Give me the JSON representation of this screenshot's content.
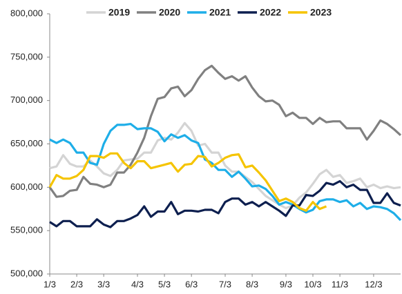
{
  "chart_data": {
    "type": "line",
    "categories": [
      "1/3",
      null,
      null,
      null,
      "2/3",
      null,
      null,
      null,
      "3/3",
      null,
      null,
      null,
      null,
      "4/3",
      null,
      null,
      null,
      "5/3",
      null,
      null,
      null,
      "6/3",
      null,
      null,
      null,
      null,
      "7/3",
      null,
      null,
      null,
      "8/3",
      null,
      null,
      null,
      null,
      "9/3",
      null,
      null,
      null,
      "10/3",
      null,
      null,
      null,
      "11/3",
      null,
      null,
      null,
      null,
      "12/3",
      null,
      null,
      null,
      null
    ],
    "series": [
      {
        "name": "2019",
        "color": "#d4d4d4",
        "values": [
          622,
          624,
          637,
          627,
          624,
          624,
          631,
          624,
          616,
          613,
          620,
          631,
          632,
          633,
          640,
          640,
          654,
          657,
          655,
          663,
          674,
          665,
          648,
          650,
          640,
          640,
          625,
          618,
          618,
          612,
          606,
          598,
          590,
          585,
          580,
          576,
          579,
          588,
          594,
          604,
          615,
          620,
          612,
          614,
          605,
          607,
          610,
          600,
          603,
          599,
          601,
          599,
          600
        ]
      },
      {
        "name": "2020",
        "color": "#808080",
        "values": [
          600,
          589,
          590,
          596,
          597,
          612,
          604,
          603,
          600,
          603,
          617,
          617,
          626,
          640,
          657,
          682,
          702,
          704,
          714,
          716,
          705,
          712,
          725,
          735,
          740,
          732,
          725,
          728,
          723,
          728,
          715,
          705,
          699,
          700,
          695,
          682,
          686,
          680,
          680,
          673,
          680,
          675,
          676,
          676,
          668,
          668,
          668,
          655,
          665,
          677,
          673,
          667,
          660
        ]
      },
      {
        "name": "2021",
        "color": "#1eaee8",
        "values": [
          655,
          651,
          655,
          651,
          640,
          640,
          628,
          626,
          650,
          665,
          672,
          672,
          673,
          667,
          668,
          668,
          664,
          653,
          661,
          657,
          660,
          654,
          651,
          632,
          628,
          620,
          620,
          612,
          618,
          610,
          601,
          602,
          598,
          590,
          580,
          583,
          580,
          575,
          571,
          574,
          584,
          586,
          586,
          583,
          585,
          578,
          582,
          575,
          578,
          577,
          575,
          570,
          562
        ]
      },
      {
        "name": "2022",
        "color": "#0d1f4f",
        "values": [
          560,
          555,
          561,
          561,
          555,
          555,
          555,
          563,
          557,
          554,
          561,
          561,
          564,
          568,
          578,
          566,
          572,
          572,
          583,
          569,
          573,
          573,
          572,
          574,
          574,
          570,
          583,
          587,
          587,
          580,
          583,
          578,
          583,
          578,
          573,
          567,
          579,
          579,
          591,
          590,
          596,
          605,
          603,
          607,
          600,
          603,
          597,
          597,
          582,
          582,
          593,
          582,
          579
        ]
      },
      {
        "name": "2023",
        "color": "#f5c400",
        "values": [
          600,
          614,
          610,
          610,
          613,
          620,
          636,
          636,
          634,
          639,
          639,
          628,
          622,
          630,
          630,
          622,
          624,
          626,
          628,
          618,
          626,
          627,
          636,
          635,
          624,
          628,
          634,
          637,
          638,
          623,
          625,
          617,
          608,
          596,
          584,
          587,
          583,
          576,
          573,
          583,
          575,
          578,
          null,
          null,
          null,
          null,
          null,
          null,
          null,
          null,
          null,
          null,
          null
        ]
      }
    ],
    "ylim": [
      500000,
      800000
    ],
    "yticks": [
      {
        "value": 500000,
        "label": "500,000"
      },
      {
        "value": 550000,
        "label": "550,000"
      },
      {
        "value": 600000,
        "label": "600,000"
      },
      {
        "value": 650000,
        "label": "650,000"
      },
      {
        "value": 700000,
        "label": "700,000"
      },
      {
        "value": 750000,
        "label": "750,000"
      },
      {
        "value": 800000,
        "label": "800,000"
      }
    ],
    "value_unit_scale": null,
    "legend": "top"
  }
}
